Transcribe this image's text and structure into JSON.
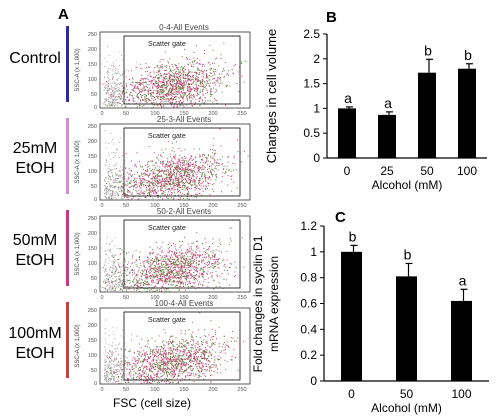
{
  "panels": {
    "A": {
      "letter": "A"
    },
    "B": {
      "letter": "B"
    },
    "C": {
      "letter": "C"
    }
  },
  "flow": {
    "row_labels": [
      {
        "line1": "Control",
        "line2": "",
        "bar_color": "#2a2aa8"
      },
      {
        "line1": "25mM",
        "line2": "EtOH",
        "bar_color": "#d98ad0"
      },
      {
        "line1": "50mM",
        "line2": "EtOH",
        "bar_color": "#d62f8a"
      },
      {
        "line1": "100mM",
        "line2": "EtOH",
        "bar_color": "#d83a3a"
      }
    ],
    "plots": [
      {
        "title": "0-4-All Events"
      },
      {
        "title": "25-3-All Events"
      },
      {
        "title": "50-2-All Events"
      },
      {
        "title": "100-4-All Events"
      }
    ],
    "gate_label": "Scatter gate",
    "y_axis_label": "SSC-A (x 1,000)",
    "y_ticks": [
      "250",
      "200",
      "150",
      "100",
      "50",
      "0"
    ],
    "x_ticks": [
      "0",
      "50",
      "100",
      "150",
      "200",
      "250"
    ],
    "x_axis_title": "FSC (cell size)",
    "dot_colors": [
      "#d4327e",
      "#4e8a2c",
      "#9a9a9a"
    ]
  },
  "chart_data": [
    {
      "type": "bar",
      "categories": [
        "0",
        "25",
        "50",
        "100"
      ],
      "values": [
        1.0,
        0.87,
        1.72,
        1.8
      ],
      "errors": [
        0.03,
        0.06,
        0.27,
        0.1
      ],
      "significance": [
        "a",
        "a",
        "b",
        "b"
      ],
      "xlabel": "Alcohol (mM)",
      "ylabel": "Changes in cell volume",
      "ylim": [
        0,
        2.5
      ],
      "yticks": [
        "0",
        "0.5",
        "1",
        "1.5",
        "2",
        "2.5"
      ],
      "bar_color": "#000000"
    },
    {
      "type": "bar",
      "categories": [
        "0",
        "50",
        "100"
      ],
      "values": [
        1.0,
        0.81,
        0.62
      ],
      "errors": [
        0.05,
        0.1,
        0.09
      ],
      "significance": [
        "b",
        "b",
        "a"
      ],
      "xlabel": "Alcohol (mM)",
      "ylabel_line1": "Fold changes in syclin D1",
      "ylabel_line2": "mRNA expression",
      "ylim": [
        0,
        1.2
      ],
      "yticks": [
        "0",
        "0.2",
        "0.4",
        "0.6",
        "0.8",
        "1",
        "1.2"
      ],
      "bar_color": "#000000"
    }
  ]
}
